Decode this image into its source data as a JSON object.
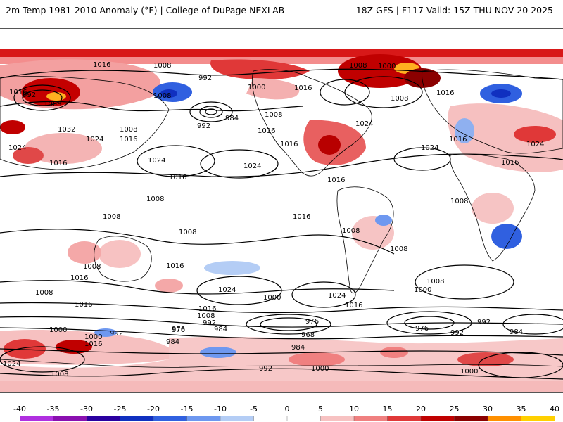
{
  "header": {
    "left_title": "2m Temp 1981-2010 Anomaly (°F) | College of DuPage NEXLAB",
    "right_title": "18Z GFS | F117 Valid: 15Z THU NOV 20 2025"
  },
  "colorbar": {
    "ticks": [
      "-40",
      "-35",
      "-30",
      "-25",
      "-20",
      "-15",
      "-10",
      "-5",
      "0",
      "5",
      "10",
      "15",
      "20",
      "25",
      "30",
      "35",
      "40"
    ],
    "colors": [
      "#e066ff",
      "#b030e0",
      "#8a10b0",
      "#2a00a0",
      "#1030c0",
      "#3060e0",
      "#6e98f0",
      "#b4cdf5",
      "#ffffff",
      "#ffffff",
      "#f7c2c2",
      "#f08080",
      "#e03838",
      "#c00000",
      "#8b0000",
      "#ff9000",
      "#ffd000"
    ]
  },
  "isobar_labels": {
    "h1016_a": "1016",
    "h992_a": "992",
    "h1008_a": "1008",
    "h1008_b": "1008",
    "h992_b": "992",
    "h1000_a": "1000",
    "h1008_c": "1008",
    "h1016_b": "1016",
    "h1008_d": "1008",
    "h1000_b": "1000",
    "h1016_c": "1016",
    "h1008_e": "1008",
    "h1016_d": "1016",
    "h1032_a": "1032",
    "h1008_f": "1008",
    "h1024_a": "1024",
    "h1016_e": "1016",
    "h992_c": "992",
    "h984_a": "984",
    "h1008_g": "1008",
    "h1024_b": "1024",
    "h1016_f": "1016",
    "h1024_c": "1024",
    "h1016_g": "1016",
    "h1024_d": "1024",
    "h1016_h": "1016",
    "h1024_e": "1024",
    "h1024_f": "1024",
    "h1016_i": "1016",
    "h1024_g": "1024",
    "h1016_j": "1016",
    "h1016_k": "1016",
    "h1008_h": "1008",
    "h1016_l": "1016",
    "h1008_i": "1008",
    "h1008_j": "1008",
    "h1008_k": "1008",
    "h1008_l": "1008",
    "h1008_m": "1008",
    "h1016_m": "1016",
    "h1008_n": "1008",
    "h1016_n": "1016",
    "h1008_o": "1008",
    "h1016_o": "1016",
    "h1024_h": "1024",
    "h1016_p": "1016",
    "h1000_c": "1000",
    "h1024_i": "1024",
    "h1008_p": "1008",
    "h1000_d": "1000",
    "h1016_q": "1016",
    "h1016_r": "1016",
    "h1008_q": "1008",
    "h992_d": "992",
    "h976_a": "976",
    "h984_b": "984",
    "h976_b": "976",
    "h968_a": "968",
    "h984_c": "984",
    "h976_c": "976",
    "h992_e": "992",
    "h992_f": "992",
    "h984_d": "984",
    "h1000_e": "1000",
    "h1016_s": "1016",
    "h1000_f": "1000",
    "h992_g": "992",
    "h976_d": "976",
    "h984_e": "984",
    "h1024_j": "1024",
    "h1008_r": "1008",
    "h992_h": "992",
    "h1000_g": "1000",
    "h1000_h": "1000"
  }
}
